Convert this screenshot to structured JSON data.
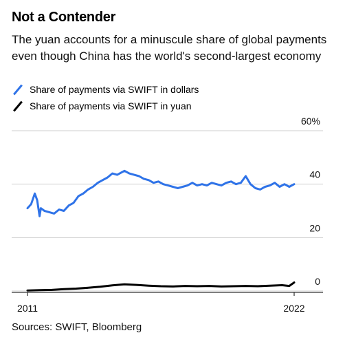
{
  "header": {
    "title": "Not a Contender",
    "subtitle": "The yuan accounts for a minuscule share of global payments even though China has the world's second-largest economy"
  },
  "legend": [
    {
      "label": "Share of payments via SWIFT in dollars",
      "color": "#2f73e8"
    },
    {
      "label": "Share of payments via SWIFT in yuan",
      "color": "#000000"
    }
  ],
  "footer": {
    "source": "Sources: SWIFT, Bloomberg"
  },
  "chart_data": {
    "type": "line",
    "title": "Not a Contender",
    "ylim": [
      0,
      60
    ],
    "xlim": [
      2011,
      2022.2
    ],
    "y_ticks": [
      0,
      20,
      40,
      60
    ],
    "y_tick_labels": [
      "0",
      "20",
      "40",
      "60%"
    ],
    "x_tick_labels": [
      "2011",
      "2022"
    ],
    "grid": true,
    "axis_side": "right",
    "series": [
      {
        "name": "Share of payments via SWIFT in dollars",
        "color": "#2f73e8",
        "x": [
          2011.0,
          2011.15,
          2011.3,
          2011.4,
          2011.5,
          2011.55,
          2011.7,
          2011.9,
          2012.1,
          2012.3,
          2012.5,
          2012.7,
          2012.9,
          2013.1,
          2013.3,
          2013.5,
          2013.7,
          2013.9,
          2014.1,
          2014.3,
          2014.5,
          2014.7,
          2014.9,
          2015.0,
          2015.2,
          2015.4,
          2015.6,
          2015.8,
          2016.0,
          2016.2,
          2016.4,
          2016.6,
          2016.8,
          2017.0,
          2017.2,
          2017.4,
          2017.6,
          2017.8,
          2018.0,
          2018.2,
          2018.4,
          2018.6,
          2018.8,
          2019.0,
          2019.2,
          2019.4,
          2019.6,
          2019.8,
          2020.0,
          2020.2,
          2020.4,
          2020.6,
          2020.8,
          2021.0,
          2021.2,
          2021.4,
          2021.6,
          2021.8,
          2022.0
        ],
        "values": [
          31.0,
          32.5,
          36.5,
          34.0,
          28.0,
          31.0,
          30.0,
          29.5,
          29.0,
          30.5,
          30.0,
          32.0,
          33.0,
          35.5,
          36.5,
          38.0,
          39.0,
          40.5,
          41.5,
          42.5,
          44.0,
          43.5,
          44.5,
          45.0,
          44.0,
          43.5,
          43.0,
          42.0,
          41.5,
          40.5,
          41.0,
          40.0,
          39.5,
          39.0,
          38.5,
          39.0,
          39.5,
          40.5,
          39.5,
          40.0,
          39.5,
          40.5,
          40.0,
          39.5,
          40.5,
          41.0,
          40.0,
          40.5,
          43.0,
          40.0,
          38.5,
          38.0,
          39.0,
          39.5,
          40.5,
          39.0,
          40.0,
          39.0,
          40.0
        ]
      },
      {
        "name": "Share of payments via SWIFT in yuan",
        "color": "#000000",
        "x": [
          2011.0,
          2011.5,
          2012.0,
          2012.5,
          2013.0,
          2013.5,
          2014.0,
          2014.5,
          2015.0,
          2015.5,
          2016.0,
          2016.5,
          2017.0,
          2017.5,
          2018.0,
          2018.5,
          2019.0,
          2019.5,
          2020.0,
          2020.5,
          2021.0,
          2021.5,
          2021.8,
          2022.0
        ],
        "values": [
          0.2,
          0.3,
          0.4,
          0.7,
          0.9,
          1.2,
          1.6,
          2.1,
          2.5,
          2.3,
          2.0,
          1.8,
          1.7,
          1.9,
          1.8,
          1.9,
          1.7,
          1.8,
          1.9,
          1.8,
          2.0,
          2.2,
          1.9,
          3.2
        ]
      }
    ]
  }
}
